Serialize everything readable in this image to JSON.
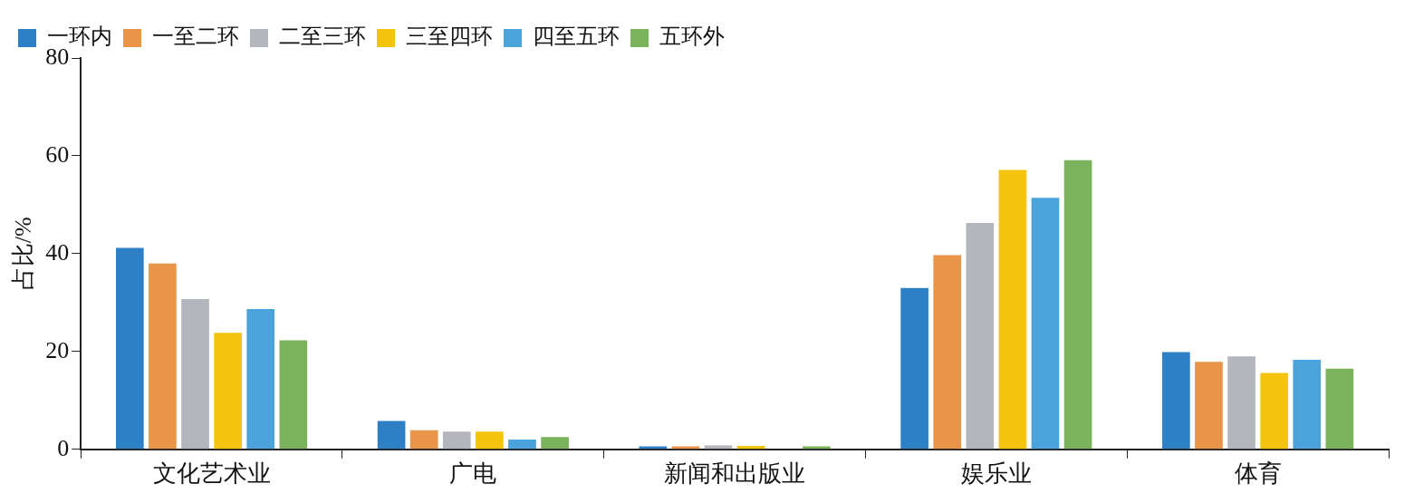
{
  "chart_data": {
    "type": "bar",
    "ylabel": "占比/%",
    "categories": [
      "文化艺术业",
      "广电",
      "新闻和出版业",
      "娱乐业",
      "体育"
    ],
    "series": [
      {
        "name": "一环内",
        "color": "#2e80c6",
        "values": [
          41.2,
          5.8,
          0.6,
          33,
          19.9
        ]
      },
      {
        "name": "一至二环",
        "color": "#e8954a",
        "values": [
          38,
          3.9,
          0.6,
          39.7,
          17.9
        ]
      },
      {
        "name": "二至三环",
        "color": "#b4b6bd",
        "values": [
          30.7,
          3.6,
          0.8,
          46.3,
          19
        ]
      },
      {
        "name": "三至四环",
        "color": "#f5c40f",
        "values": [
          23.8,
          3.6,
          0.7,
          57.1,
          15.6
        ]
      },
      {
        "name": "四至五环",
        "color": "#4aa3db",
        "values": [
          28.7,
          2,
          0,
          51.4,
          18.3
        ]
      },
      {
        "name": "五环外",
        "color": "#7bb35d",
        "values": [
          22.3,
          2.5,
          0.6,
          59.1,
          16.5
        ]
      }
    ],
    "ylim": [
      0,
      80
    ],
    "yticks": [
      0,
      20,
      40,
      60,
      80
    ],
    "grid": false,
    "legend": "top left"
  }
}
